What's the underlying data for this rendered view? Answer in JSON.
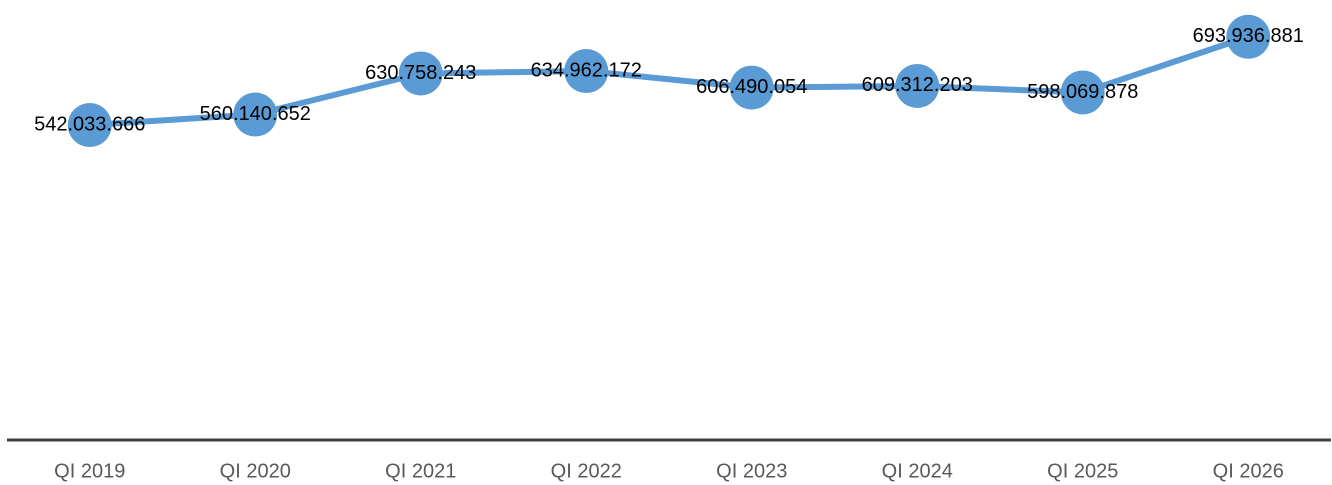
{
  "chart_data": {
    "type": "line",
    "categories": [
      "QI 2019",
      "QI 2020",
      "QI 2021",
      "QI 2022",
      "QI 2023",
      "QI 2024",
      "QI 2025",
      "QI 2026"
    ],
    "series": [
      {
        "color": "#5b9bd5",
        "values": [
          542033666,
          560140652,
          630758243,
          634962172,
          606490054,
          609312203,
          598069878,
          693936881
        ],
        "value_labels": [
          "542.033.666",
          "560.140.652",
          "630.758.243",
          "634.962.172",
          "606.490.054",
          "609.312.203",
          "598.069.878",
          "693.936.881"
        ]
      }
    ],
    "ylim": [
      0,
      740000000
    ]
  }
}
